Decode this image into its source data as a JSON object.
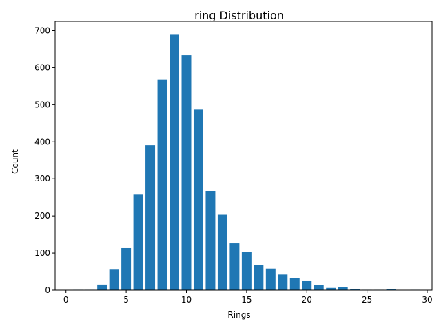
{
  "chart_data": {
    "type": "bar",
    "title": "ring Distribution",
    "xlabel": "Rings",
    "ylabel": "Count",
    "xlim": [
      -0.9,
      30.4
    ],
    "ylim": [
      0,
      725
    ],
    "xticks": [
      0,
      5,
      10,
      15,
      20,
      25,
      30
    ],
    "yticks": [
      0,
      100,
      200,
      300,
      400,
      500,
      600,
      700
    ],
    "grid": false,
    "legend": "none",
    "bar_color": "#1f77b4",
    "x": [
      1,
      2,
      3,
      4,
      5,
      6,
      7,
      8,
      9,
      10,
      11,
      12,
      13,
      14,
      15,
      16,
      17,
      18,
      19,
      20,
      21,
      22,
      23,
      24,
      25,
      26,
      27,
      29
    ],
    "values": [
      1,
      1,
      15,
      57,
      115,
      259,
      391,
      568,
      689,
      634,
      487,
      267,
      203,
      126,
      103,
      67,
      58,
      42,
      32,
      26,
      14,
      6,
      9,
      2,
      1,
      1,
      2,
      1
    ]
  }
}
